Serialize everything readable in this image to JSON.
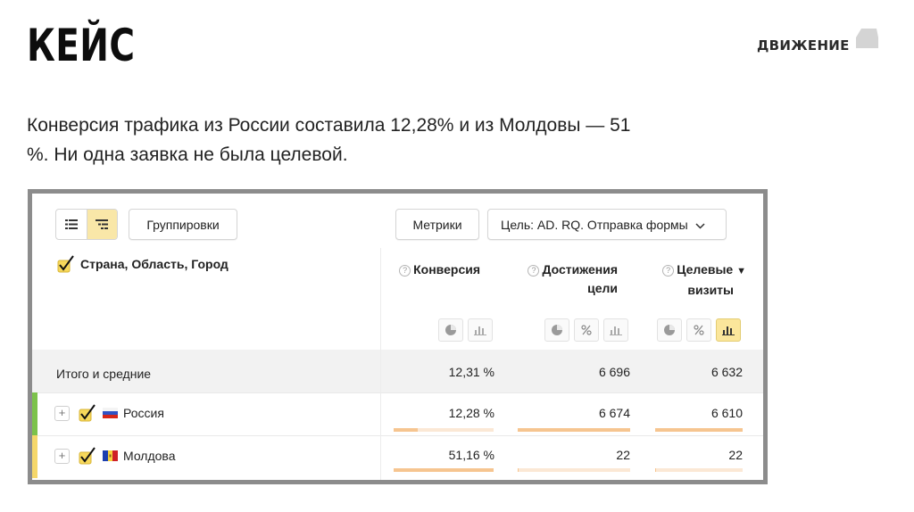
{
  "slide": {
    "title": "КЕЙС",
    "logo_text": "ДВИЖЕНИЕ",
    "subtitle_line1": "Конверсия трафика из России составила 12,28% и из Молдовы — 51",
    "subtitle_line2": "%.  Ни одна заявка не была целевой."
  },
  "toolbar": {
    "view_list_icon": "list-icon",
    "view_tree_icon": "tree-list-icon",
    "groupings_label": "Группировки",
    "metrics_label": "Метрики",
    "goal_label": "Цель: AD. RQ. Отправка формы"
  },
  "table": {
    "dimension_header": "Страна, Область, Город",
    "columns": [
      {
        "label_line1": "Конверсия",
        "label_line2": ""
      },
      {
        "label_line1": "Достижения",
        "label_line2": "цели"
      },
      {
        "label_line1": "Целевые",
        "label_line2": "визиты",
        "sort": "▼"
      }
    ],
    "total": {
      "label": "Итого и средние",
      "conversion": "12,31 %",
      "achievements": "6 696",
      "target_visits": "6 632"
    },
    "rows": [
      {
        "country": "Россия",
        "conversion": "12,28 %",
        "achievements": "6 674",
        "target_visits": "6 610",
        "conversion_bar": 0.24,
        "achievements_bar": 1.0,
        "target_visits_bar": 1.0,
        "marker_color": "#7cc24b"
      },
      {
        "country": "Молдова",
        "conversion": "51,16 %",
        "achievements": "22",
        "target_visits": "22",
        "conversion_bar": 1.0,
        "achievements_bar": 0.003,
        "target_visits_bar": 0.003,
        "marker_color": "#f5d76a"
      }
    ]
  },
  "colors": {
    "accent_yellow": "#f9e7a8",
    "bar_fill": "#f6c590",
    "bar_track": "#fbe8d5",
    "frame_border": "#8c8c8c"
  }
}
